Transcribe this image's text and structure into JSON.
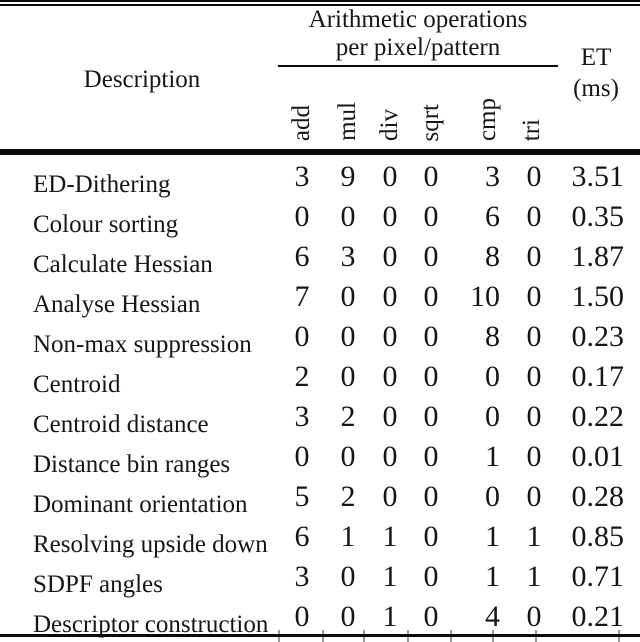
{
  "table": {
    "header": {
      "description": "Description",
      "group_title_line1": "Arithmetic operations",
      "group_title_line2": "per pixel/pattern",
      "op_columns": [
        "add",
        "mul",
        "div",
        "sqrt",
        "cmp",
        "tri"
      ],
      "et_line1": "ET",
      "et_line2": "(ms)"
    },
    "rows": [
      {
        "description": "ED-Dithering",
        "add": "3",
        "mul": "9",
        "div": "0",
        "sqrt": "0",
        "cmp": "3",
        "tri": "0",
        "et": "3.51"
      },
      {
        "description": "Colour sorting",
        "add": "0",
        "mul": "0",
        "div": "0",
        "sqrt": "0",
        "cmp": "6",
        "tri": "0",
        "et": "0.35"
      },
      {
        "description": "Calculate Hessian",
        "add": "6",
        "mul": "3",
        "div": "0",
        "sqrt": "0",
        "cmp": "8",
        "tri": "0",
        "et": "1.87"
      },
      {
        "description": "Analyse Hessian",
        "add": "7",
        "mul": "0",
        "div": "0",
        "sqrt": "0",
        "cmp": "10",
        "tri": "0",
        "et": "1.50"
      },
      {
        "description": "Non-max suppression",
        "add": "0",
        "mul": "0",
        "div": "0",
        "sqrt": "0",
        "cmp": "8",
        "tri": "0",
        "et": "0.23"
      },
      {
        "description": "Centroid",
        "add": "2",
        "mul": "0",
        "div": "0",
        "sqrt": "0",
        "cmp": "0",
        "tri": "0",
        "et": "0.17"
      },
      {
        "description": "Centroid distance",
        "add": "3",
        "mul": "2",
        "div": "0",
        "sqrt": "0",
        "cmp": "0",
        "tri": "0",
        "et": "0.22"
      },
      {
        "description": "Distance bin ranges",
        "add": "0",
        "mul": "0",
        "div": "0",
        "sqrt": "0",
        "cmp": "1",
        "tri": "0",
        "et": "0.01"
      },
      {
        "description": "Dominant orientation",
        "add": "5",
        "mul": "2",
        "div": "0",
        "sqrt": "0",
        "cmp": "0",
        "tri": "0",
        "et": "0.28"
      },
      {
        "description": "Resolving upside down",
        "add": "6",
        "mul": "1",
        "div": "1",
        "sqrt": "0",
        "cmp": "1",
        "tri": "1",
        "et": "0.85"
      },
      {
        "description": "SDPF angles",
        "add": "3",
        "mul": "0",
        "div": "1",
        "sqrt": "0",
        "cmp": "1",
        "tri": "1",
        "et": "0.71"
      },
      {
        "description": "Descriptor construction",
        "add": "0",
        "mul": "0",
        "div": "1",
        "sqrt": "0",
        "cmp": "4",
        "tri": "0",
        "et": "0.21"
      }
    ]
  },
  "colors": {
    "background": "#ffffff",
    "text": "#161616",
    "rule": "#0a0a0a",
    "continuation_tick": "#9a9a9a"
  }
}
